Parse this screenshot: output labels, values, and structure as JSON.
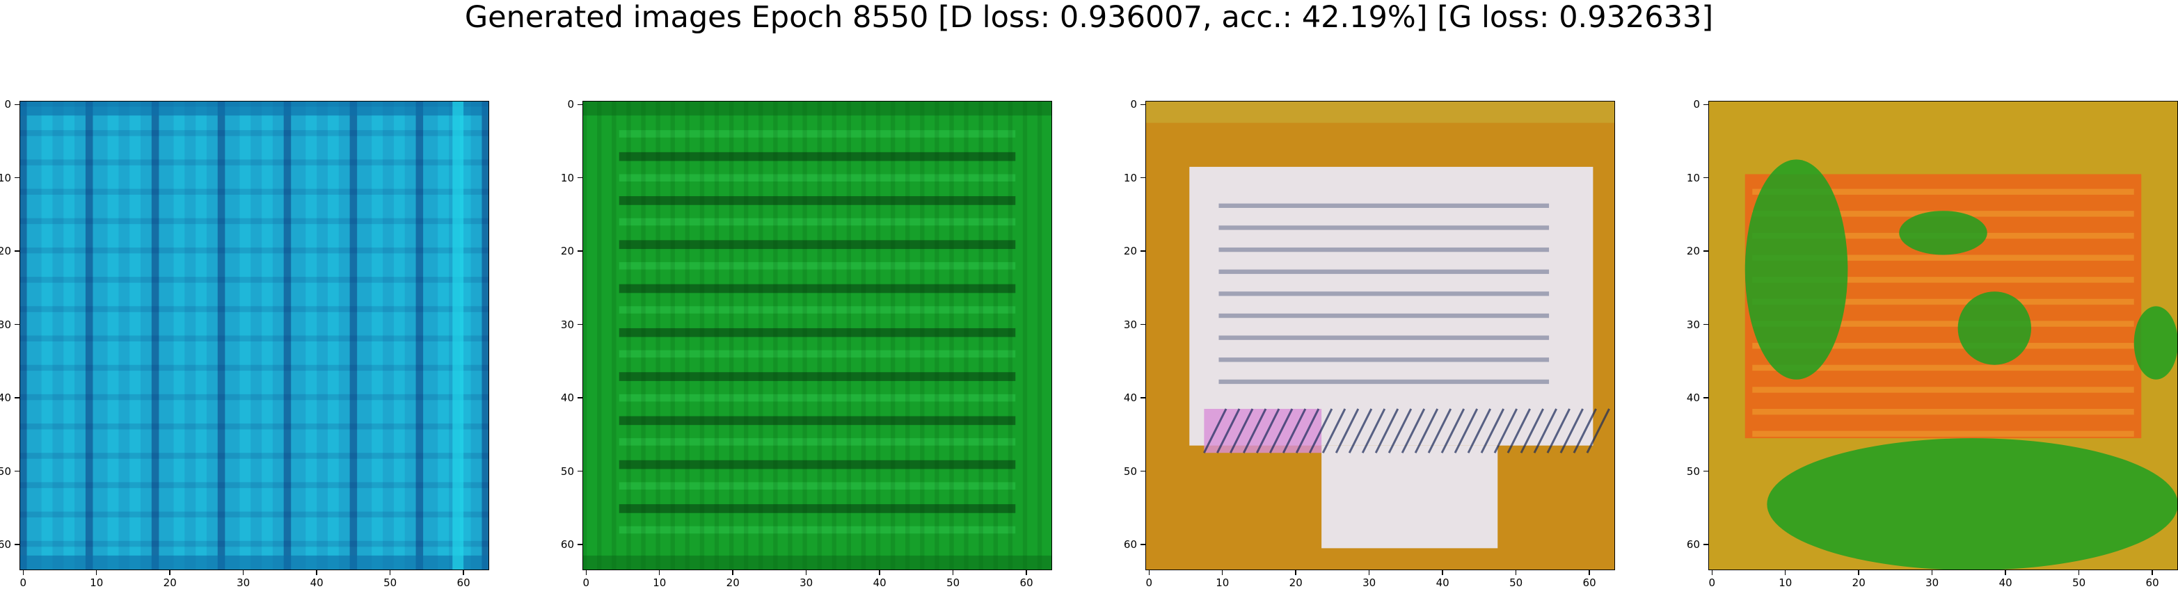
{
  "chart_data": {
    "type": "heatmap",
    "title": "Generated images Epoch 8550 [D loss: 0.936007, acc.: 42.19%] [G loss: 0.932633]",
    "panels": [
      {
        "name": "",
        "dominant_color": "#1ea7cf",
        "secondary_color": "#0a2a72",
        "accent_color": "#22d6ea",
        "pattern": "vertical-stripes"
      },
      {
        "name": "",
        "dominant_color": "#16a02a",
        "secondary_color": "#04300c",
        "accent_color": "#3ae060",
        "pattern": "horizontal-stripes"
      },
      {
        "name": "",
        "dominant_color": "#e8e2e6",
        "secondary_color": "#c98c1a",
        "accent_color": "#1a2a5a",
        "pattern": "diagonal-hatch"
      },
      {
        "name": "",
        "dominant_color": "#e86a1a",
        "secondary_color": "#1fa021",
        "accent_color": "#c8a020",
        "pattern": "blotches"
      }
    ],
    "x_ticks": [
      "0",
      "10",
      "20",
      "30",
      "40",
      "50",
      "60"
    ],
    "y_ticks": [
      "0",
      "10",
      "20",
      "30",
      "40",
      "50",
      "60"
    ],
    "xlim": [
      -0.5,
      63.5
    ],
    "ylim": [
      63.5,
      -0.5
    ],
    "grid": false
  }
}
